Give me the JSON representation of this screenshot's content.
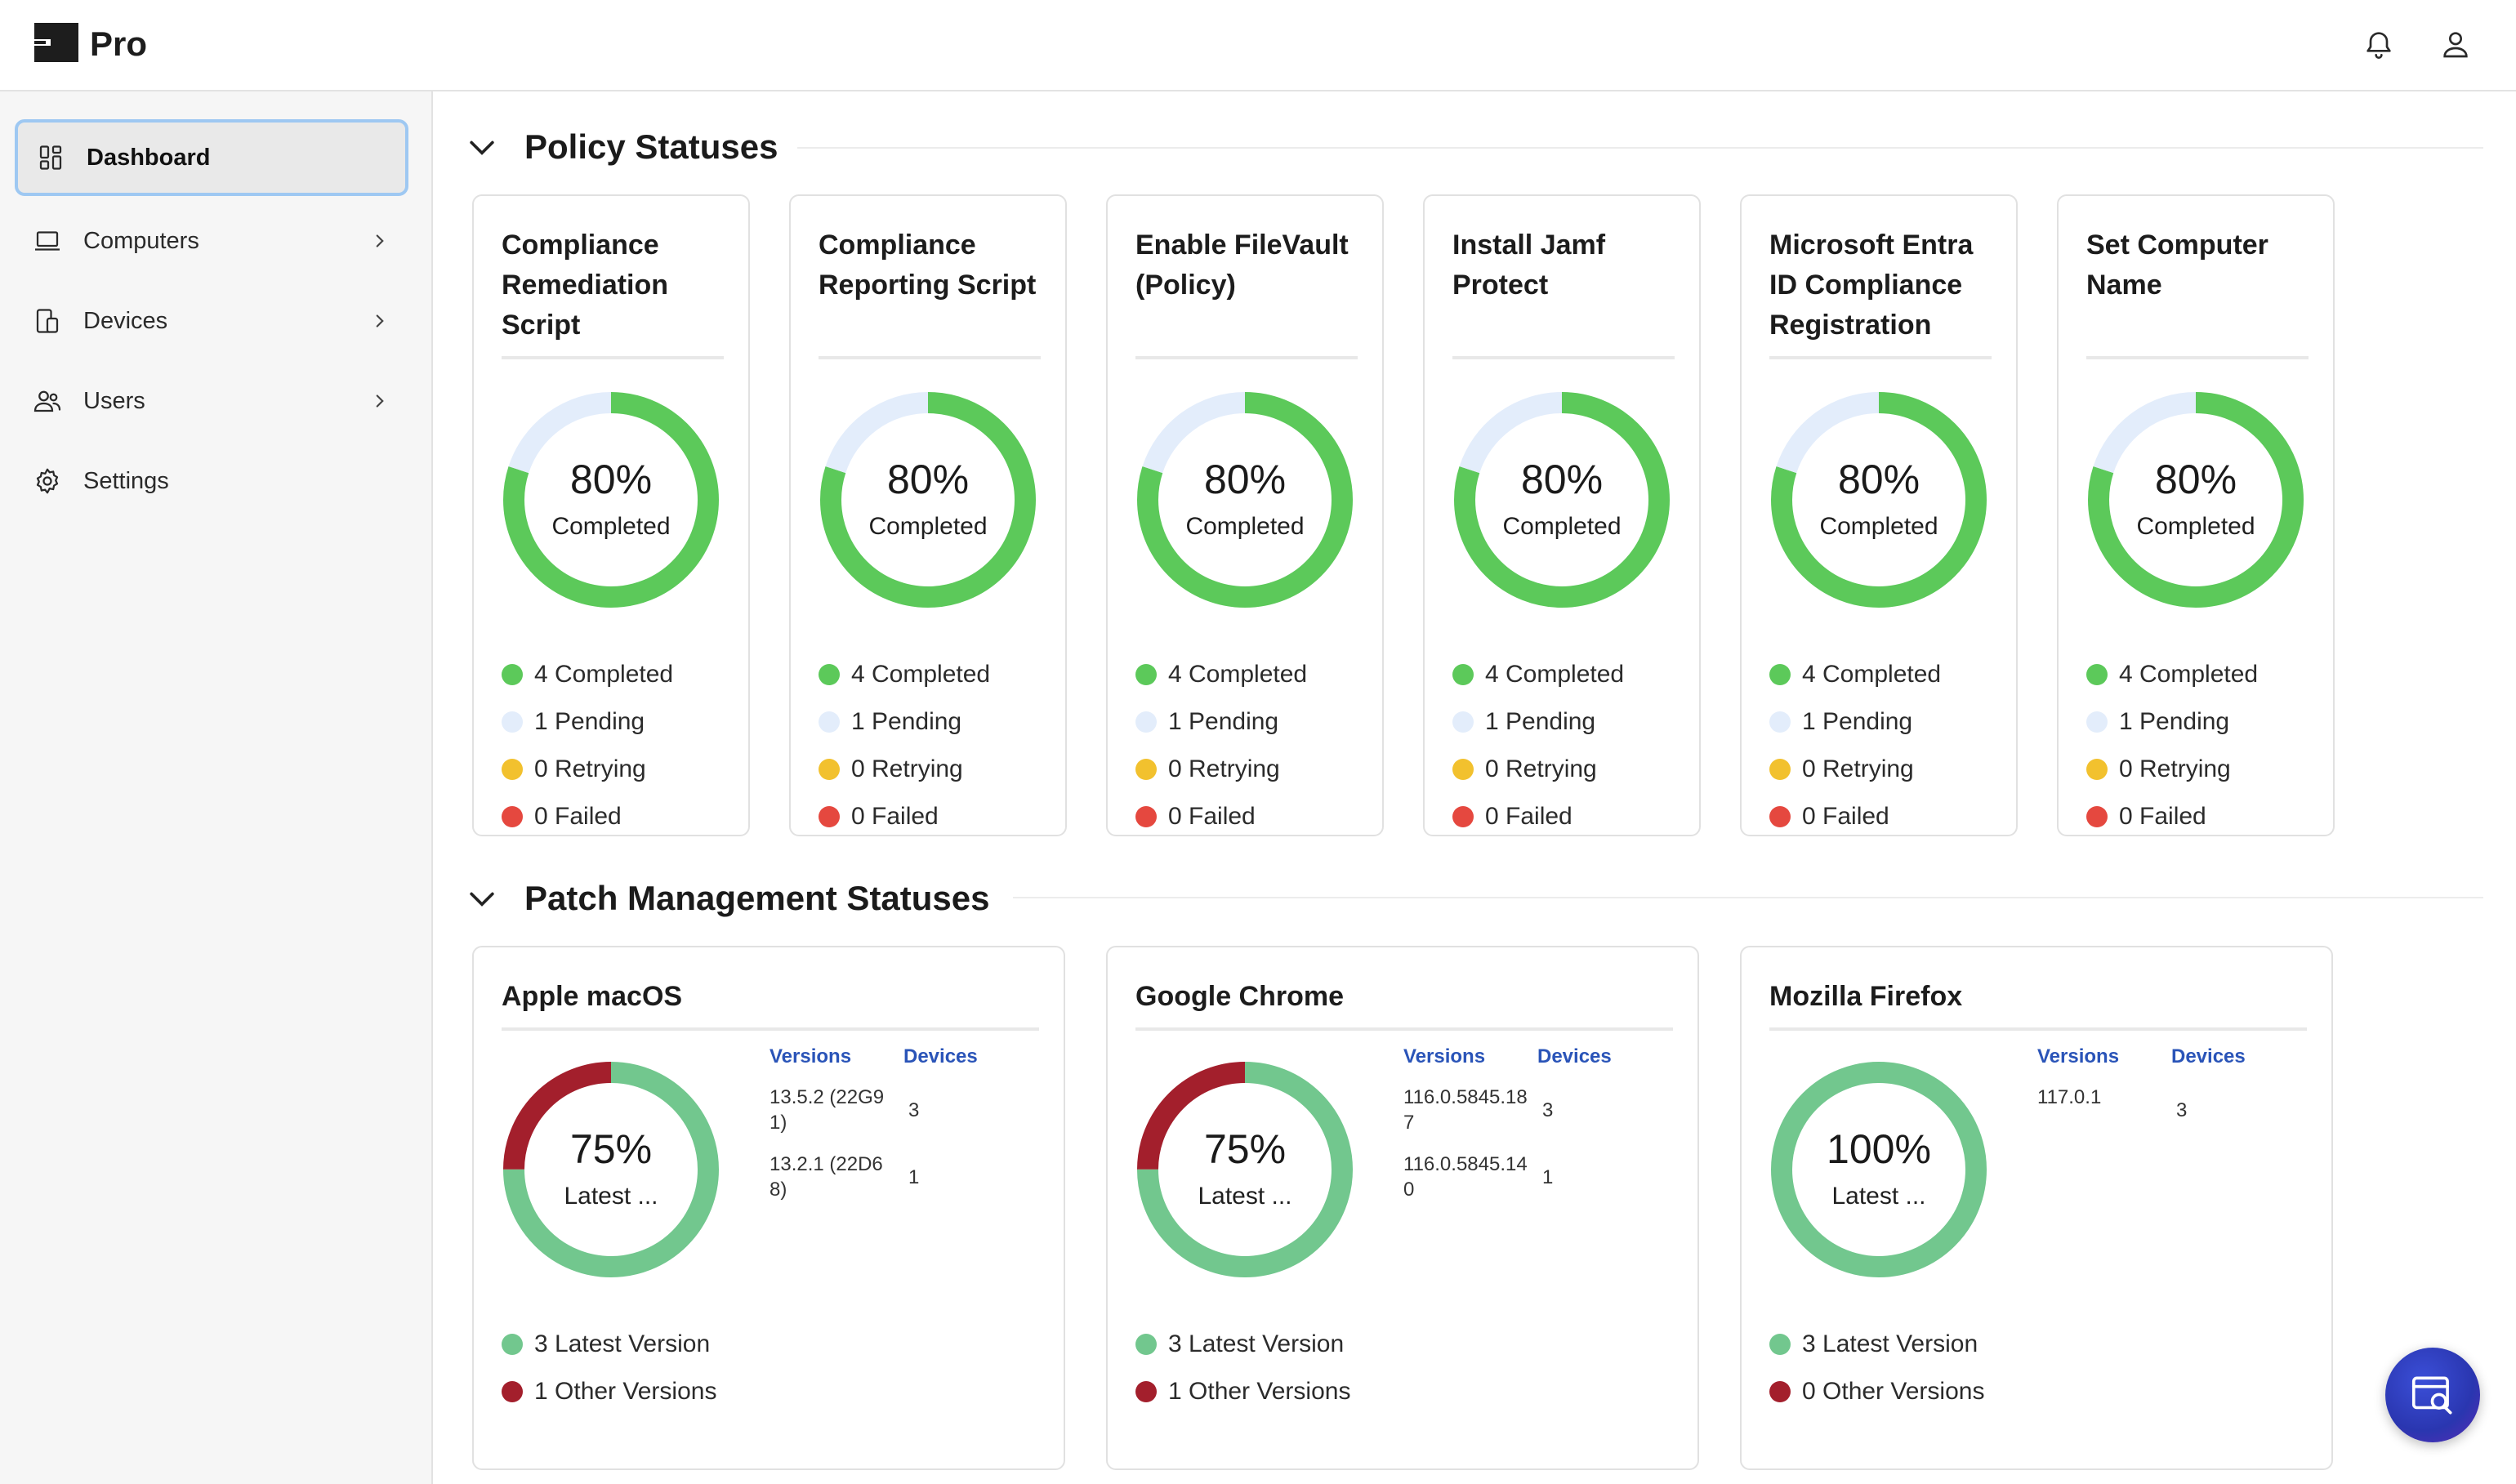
{
  "brand": {
    "name": "Pro"
  },
  "icons": {
    "notifications": "bell-icon",
    "account": "user-icon",
    "help": "search-document-icon"
  },
  "colors": {
    "completed": "#5cc95a",
    "pending": "#e3edfb",
    "retrying": "#f2c12e",
    "failed": "#e5483f",
    "latest": "#72c78e",
    "other": "#a31f2c",
    "link": "#2a54b8"
  },
  "sidebar": {
    "items": [
      {
        "label": "Dashboard",
        "icon": "dashboard-icon",
        "active": true,
        "has_children": false
      },
      {
        "label": "Computers",
        "icon": "laptop-icon",
        "active": false,
        "has_children": true
      },
      {
        "label": "Devices",
        "icon": "devices-icon",
        "active": false,
        "has_children": true
      },
      {
        "label": "Users",
        "icon": "users-icon",
        "active": false,
        "has_children": true
      },
      {
        "label": "Settings",
        "icon": "gear-icon",
        "active": false,
        "has_children": false
      }
    ]
  },
  "policy": {
    "title": "Policy Statuses",
    "cards": [
      {
        "title": "Compliance Remediation Script",
        "percent_label": "80%",
        "center_label": "Completed",
        "completed": 4,
        "pending": 1,
        "retrying": 0,
        "failed": 0,
        "legend": [
          "4 Completed",
          "1 Pending",
          "0 Retrying",
          "0 Failed"
        ]
      },
      {
        "title": "Compliance Reporting Script",
        "percent_label": "80%",
        "center_label": "Completed",
        "completed": 4,
        "pending": 1,
        "retrying": 0,
        "failed": 0,
        "legend": [
          "4 Completed",
          "1 Pending",
          "0 Retrying",
          "0 Failed"
        ]
      },
      {
        "title": "Enable FileVault (Policy)",
        "percent_label": "80%",
        "center_label": "Completed",
        "completed": 4,
        "pending": 1,
        "retrying": 0,
        "failed": 0,
        "legend": [
          "4 Completed",
          "1 Pending",
          "0 Retrying",
          "0 Failed"
        ]
      },
      {
        "title": "Install Jamf Protect",
        "percent_label": "80%",
        "center_label": "Completed",
        "completed": 4,
        "pending": 1,
        "retrying": 0,
        "failed": 0,
        "legend": [
          "4 Completed",
          "1 Pending",
          "0 Retrying",
          "0 Failed"
        ]
      },
      {
        "title": "Microsoft Entra ID Compliance Registration",
        "percent_label": "80%",
        "center_label": "Completed",
        "completed": 4,
        "pending": 1,
        "retrying": 0,
        "failed": 0,
        "legend": [
          "4 Completed",
          "1 Pending",
          "0 Retrying",
          "0 Failed"
        ]
      },
      {
        "title": "Set Computer Name",
        "percent_label": "80%",
        "center_label": "Completed",
        "completed": 4,
        "pending": 1,
        "retrying": 0,
        "failed": 0,
        "legend": [
          "4 Completed",
          "1 Pending",
          "0 Retrying",
          "0 Failed"
        ]
      }
    ]
  },
  "patch": {
    "title": "Patch Management Statuses",
    "versions_header": "Versions",
    "devices_header": "Devices",
    "cards": [
      {
        "title": "Apple macOS",
        "percent_label": "75%",
        "center_label": "Latest ...",
        "latest": 3,
        "other": 1,
        "legend": [
          "3 Latest Version",
          "1 Other Versions"
        ],
        "rows": [
          {
            "version": "13.5.2 (22G91)",
            "devices": "3"
          },
          {
            "version": "13.2.1 (22D68)",
            "devices": "1"
          }
        ]
      },
      {
        "title": "Google Chrome",
        "percent_label": "75%",
        "center_label": "Latest ...",
        "latest": 3,
        "other": 1,
        "legend": [
          "3 Latest Version",
          "1 Other Versions"
        ],
        "rows": [
          {
            "version": "116.0.5845.187",
            "devices": "3"
          },
          {
            "version": "116.0.5845.140",
            "devices": "1"
          }
        ]
      },
      {
        "title": "Mozilla Firefox",
        "percent_label": "100%",
        "center_label": "Latest ...",
        "latest": 3,
        "other": 0,
        "legend": [
          "3 Latest Version",
          "0 Other Versions"
        ],
        "rows": [
          {
            "version": "117.0.1",
            "devices": "3"
          }
        ]
      }
    ]
  }
}
